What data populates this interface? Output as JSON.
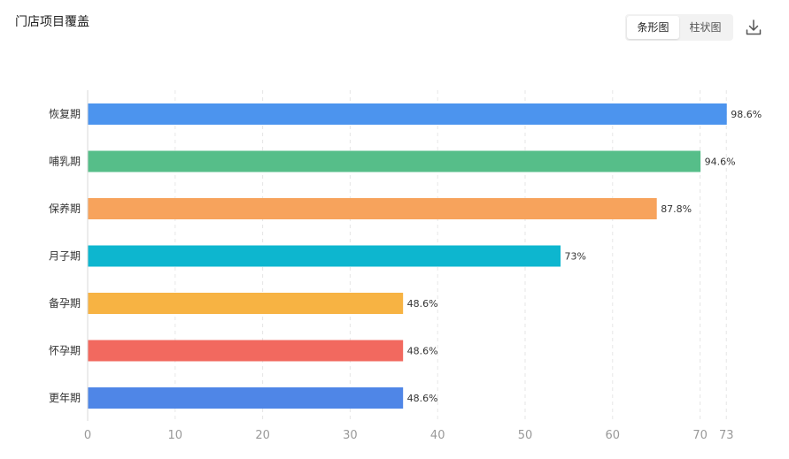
{
  "header": {
    "title": "门店项目覆盖",
    "toggle_bar": "条形图",
    "toggle_column": "柱状图"
  },
  "icons": {
    "download": "download-icon"
  },
  "chart_data": {
    "type": "bar",
    "orientation": "horizontal",
    "title": "门店项目覆盖",
    "categories": [
      "恢复期",
      "哺乳期",
      "保养期",
      "月子期",
      "备孕期",
      "怀孕期",
      "更年期"
    ],
    "values": [
      73,
      70,
      65,
      54,
      36,
      36,
      36
    ],
    "labels": [
      "98.6%",
      "94.6%",
      "87.8%",
      "73%",
      "48.6%",
      "48.6%",
      "48.6%"
    ],
    "colors": [
      "#4C94EE",
      "#56BE89",
      "#F7A35C",
      "#0DB6CF",
      "#F7B343",
      "#F2695F",
      "#4F86E7"
    ],
    "xticks": [
      0,
      10,
      20,
      30,
      40,
      50,
      60,
      70,
      73
    ],
    "xlim": [
      0,
      73
    ],
    "xlabel": "",
    "ylabel": "",
    "grid": true
  }
}
